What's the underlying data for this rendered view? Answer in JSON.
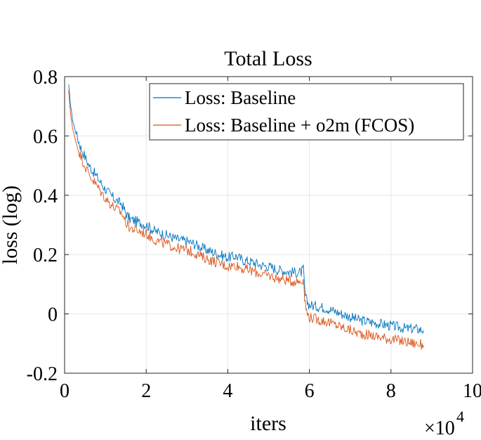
{
  "chart_data": {
    "type": "line",
    "title": "Total Loss",
    "xlabel": "iters",
    "ylabel": "loss (log)",
    "x_multiplier_label": "×10",
    "x_multiplier_exponent": "4",
    "xlim": [
      0,
      10
    ],
    "ylim": [
      -0.2,
      0.8
    ],
    "x_ticks": [
      0,
      2,
      4,
      6,
      8,
      10
    ],
    "x_tick_labels": [
      "0",
      "2",
      "4",
      "6",
      "8",
      "10"
    ],
    "y_ticks": [
      -0.2,
      0,
      0.2,
      0.4,
      0.6,
      0.8
    ],
    "y_tick_labels": [
      "-0.2",
      "0",
      "0.2",
      "0.4",
      "0.6",
      "0.8"
    ],
    "grid": true,
    "legend_position": "top-right",
    "series": [
      {
        "name": "Loss: Baseline",
        "color": "#0072BD",
        "x": [
          0.1,
          0.15,
          0.2,
          0.3,
          0.4,
          0.5,
          0.6,
          0.8,
          1.0,
          1.2,
          1.4,
          1.5,
          1.6,
          1.8,
          2.0,
          2.2,
          2.4,
          2.6,
          2.8,
          3.0,
          3.2,
          3.4,
          3.6,
          3.8,
          4.0,
          4.2,
          4.4,
          4.6,
          4.8,
          5.0,
          5.2,
          5.4,
          5.6,
          5.8,
          5.85,
          5.9,
          5.95,
          6.0,
          6.2,
          6.4,
          6.6,
          6.8,
          7.0,
          7.2,
          7.4,
          7.6,
          7.8,
          8.0,
          8.2,
          8.4,
          8.6,
          8.8
        ],
        "values": [
          0.77,
          0.7,
          0.65,
          0.6,
          0.56,
          0.53,
          0.5,
          0.46,
          0.42,
          0.39,
          0.37,
          0.34,
          0.32,
          0.31,
          0.3,
          0.28,
          0.27,
          0.26,
          0.25,
          0.245,
          0.235,
          0.22,
          0.21,
          0.2,
          0.19,
          0.195,
          0.18,
          0.175,
          0.165,
          0.16,
          0.15,
          0.145,
          0.14,
          0.14,
          0.15,
          0.06,
          0.04,
          0.03,
          0.025,
          0.02,
          0.01,
          0.0,
          -0.01,
          -0.02,
          -0.025,
          -0.03,
          -0.035,
          -0.04,
          -0.045,
          -0.05,
          -0.05,
          -0.055
        ]
      },
      {
        "name": "Loss: Baseline + o2m (FCOS)",
        "color": "#D95319",
        "x": [
          0.1,
          0.15,
          0.2,
          0.3,
          0.4,
          0.5,
          0.6,
          0.8,
          1.0,
          1.2,
          1.4,
          1.5,
          1.6,
          1.8,
          2.0,
          2.2,
          2.4,
          2.6,
          2.8,
          3.0,
          3.2,
          3.4,
          3.6,
          3.8,
          4.0,
          4.2,
          4.4,
          4.6,
          4.8,
          5.0,
          5.2,
          5.4,
          5.6,
          5.8,
          5.85,
          5.9,
          5.95,
          6.0,
          6.2,
          6.4,
          6.6,
          6.8,
          7.0,
          7.2,
          7.4,
          7.6,
          7.8,
          8.0,
          8.2,
          8.4,
          8.6,
          8.8
        ],
        "values": [
          0.75,
          0.67,
          0.62,
          0.57,
          0.53,
          0.5,
          0.47,
          0.43,
          0.39,
          0.36,
          0.34,
          0.31,
          0.29,
          0.28,
          0.27,
          0.25,
          0.24,
          0.23,
          0.22,
          0.215,
          0.205,
          0.19,
          0.18,
          0.17,
          0.16,
          0.165,
          0.15,
          0.145,
          0.135,
          0.13,
          0.12,
          0.115,
          0.11,
          0.11,
          0.12,
          0.03,
          0.0,
          -0.01,
          -0.02,
          -0.025,
          -0.035,
          -0.045,
          -0.055,
          -0.065,
          -0.07,
          -0.075,
          -0.08,
          -0.085,
          -0.09,
          -0.095,
          -0.1,
          -0.105
        ]
      }
    ]
  }
}
